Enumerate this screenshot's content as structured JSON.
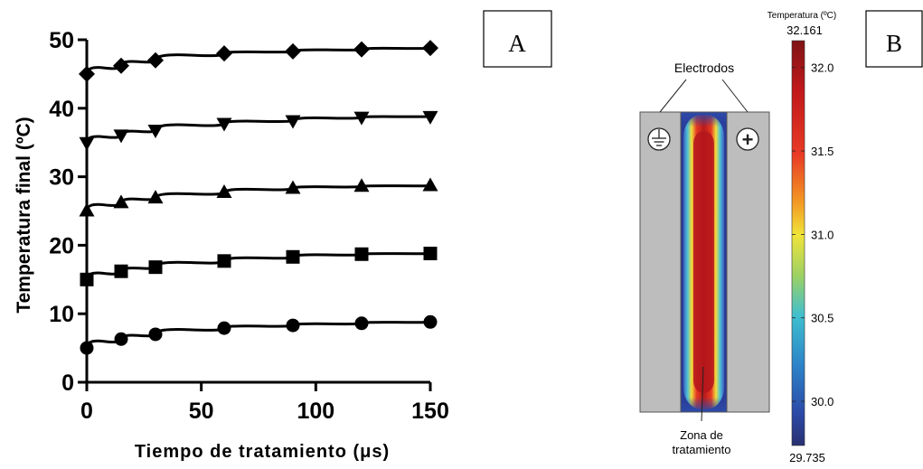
{
  "panel_a": {
    "label": "A",
    "chart_data": {
      "type": "line",
      "xlabel": "Tiempo de tratamiento (μs)",
      "ylabel": "Temperatura final (ºC)",
      "xlim": [
        0,
        150
      ],
      "ylim": [
        0,
        50
      ],
      "xticks": [
        0,
        50,
        100,
        150
      ],
      "yticks": [
        0,
        10,
        20,
        30,
        40,
        50
      ],
      "grid": false,
      "series": [
        {
          "marker": "circle",
          "x": [
            0,
            15,
            30,
            60,
            90,
            120,
            150
          ],
          "y": [
            5,
            6.3,
            7,
            7.9,
            8.3,
            8.6,
            8.8
          ]
        },
        {
          "marker": "square",
          "x": [
            0,
            15,
            30,
            60,
            90,
            120,
            150
          ],
          "y": [
            15,
            16.2,
            16.8,
            17.7,
            18.3,
            18.7,
            18.8
          ]
        },
        {
          "marker": "triangle",
          "x": [
            0,
            15,
            30,
            60,
            90,
            120,
            150
          ],
          "y": [
            25,
            26.2,
            26.9,
            27.7,
            28.3,
            28.6,
            28.7
          ]
        },
        {
          "marker": "triangle-down",
          "x": [
            0,
            15,
            30,
            60,
            90,
            120,
            150
          ],
          "y": [
            35,
            36.1,
            36.8,
            37.8,
            38.2,
            38.7,
            38.8
          ]
        },
        {
          "marker": "diamond",
          "x": [
            0,
            15,
            30,
            60,
            90,
            120,
            150
          ],
          "y": [
            45,
            46.2,
            47,
            48,
            48.3,
            48.6,
            48.8
          ]
        }
      ]
    }
  },
  "panel_b": {
    "label": "B",
    "colorbar_title": "Temperatura (ºC)",
    "colorbar_max": "32.161",
    "colorbar_min": "29.735",
    "colorbar_range": [
      29.735,
      32.161
    ],
    "colorbar_ticks": [
      {
        "value": 32.0,
        "label": "32.0"
      },
      {
        "value": 31.5,
        "label": "31.5"
      },
      {
        "value": 31.0,
        "label": "31.0"
      },
      {
        "value": 30.5,
        "label": "30.5"
      },
      {
        "value": 30.0,
        "label": "30.0"
      }
    ],
    "electrodes_label": "Electrodos",
    "ground_symbol": "⏚",
    "plus_symbol": "+",
    "zone_label_line1": "Zona de",
    "zone_label_line2": "tratamiento",
    "colors": {
      "electrode": "#bdbdbd",
      "hot": "#c0181a",
      "cold": "#283891"
    }
  }
}
